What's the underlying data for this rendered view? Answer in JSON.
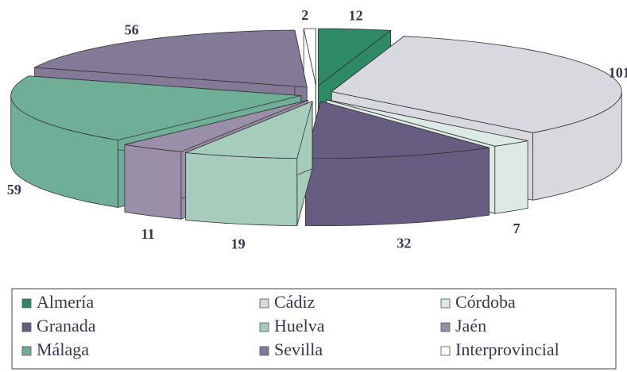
{
  "chart_data": {
    "type": "pie",
    "categories": [
      "Almería",
      "Cádiz",
      "Córdoba",
      "Granada",
      "Huelva",
      "Jaén",
      "Málaga",
      "Sevilla",
      "Interprovincial"
    ],
    "values": [
      12,
      101,
      7,
      32,
      19,
      11,
      59,
      56,
      2
    ],
    "colors": [
      "#2e8a64",
      "#d8d8df",
      "#dde9e5",
      "#675d80",
      "#a6cdbc",
      "#9a8fa9",
      "#6fae97",
      "#837a97",
      "#ffffff"
    ],
    "legend": "bottom"
  }
}
